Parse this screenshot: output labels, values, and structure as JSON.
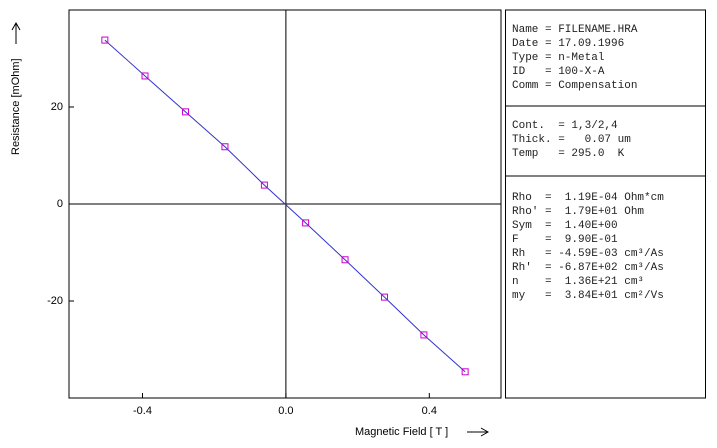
{
  "chart_data": {
    "type": "scatter",
    "x_label": "Magnetic Field [ T ]",
    "y_label": "Resistance [mOhm]",
    "x": [
      -0.505,
      -0.393,
      -0.28,
      -0.17,
      -0.06,
      0.055,
      0.165,
      0.275,
      0.385,
      0.5
    ],
    "values": [
      33.8,
      26.4,
      19.0,
      11.8,
      3.9,
      -3.9,
      -11.5,
      -19.2,
      -27.0,
      -34.6
    ],
    "color": "#cc00cc",
    "line_color": "#3333cc",
    "xlim": [
      -0.605,
      0.6
    ],
    "xticks": [
      -0.4,
      {
        "value": 0,
        "label": "0.0"
      },
      0.4
    ],
    "ylim": [
      -40,
      40
    ],
    "yticks": [
      -20,
      0,
      20
    ]
  },
  "panels": [
    {
      "lines": [
        "Name = FILENAME.HRA",
        "Date = 17.09.1996",
        "Type = n-Metal",
        "ID   = 100-X-A",
        "Comm = Compensation"
      ]
    },
    {
      "lines": [
        "Cont.  = 1,3/2,4",
        "Thick. =   0.07 um",
        "Temp   = 295.0  K"
      ]
    },
    {
      "lines": [
        "Rho  =  1.19E-04 Ohm*cm",
        "Rho' =  1.79E+01 Ohm",
        "Sym  =  1.40E+00",
        "F    =  9.90E-01",
        "Rh   = -4.59E-03 cm³/As",
        "Rh'  = -6.87E+02 cm³/As",
        "n    =  1.36E+21 cm³",
        "my   =  3.84E+01 cm²/Vs"
      ]
    }
  ]
}
